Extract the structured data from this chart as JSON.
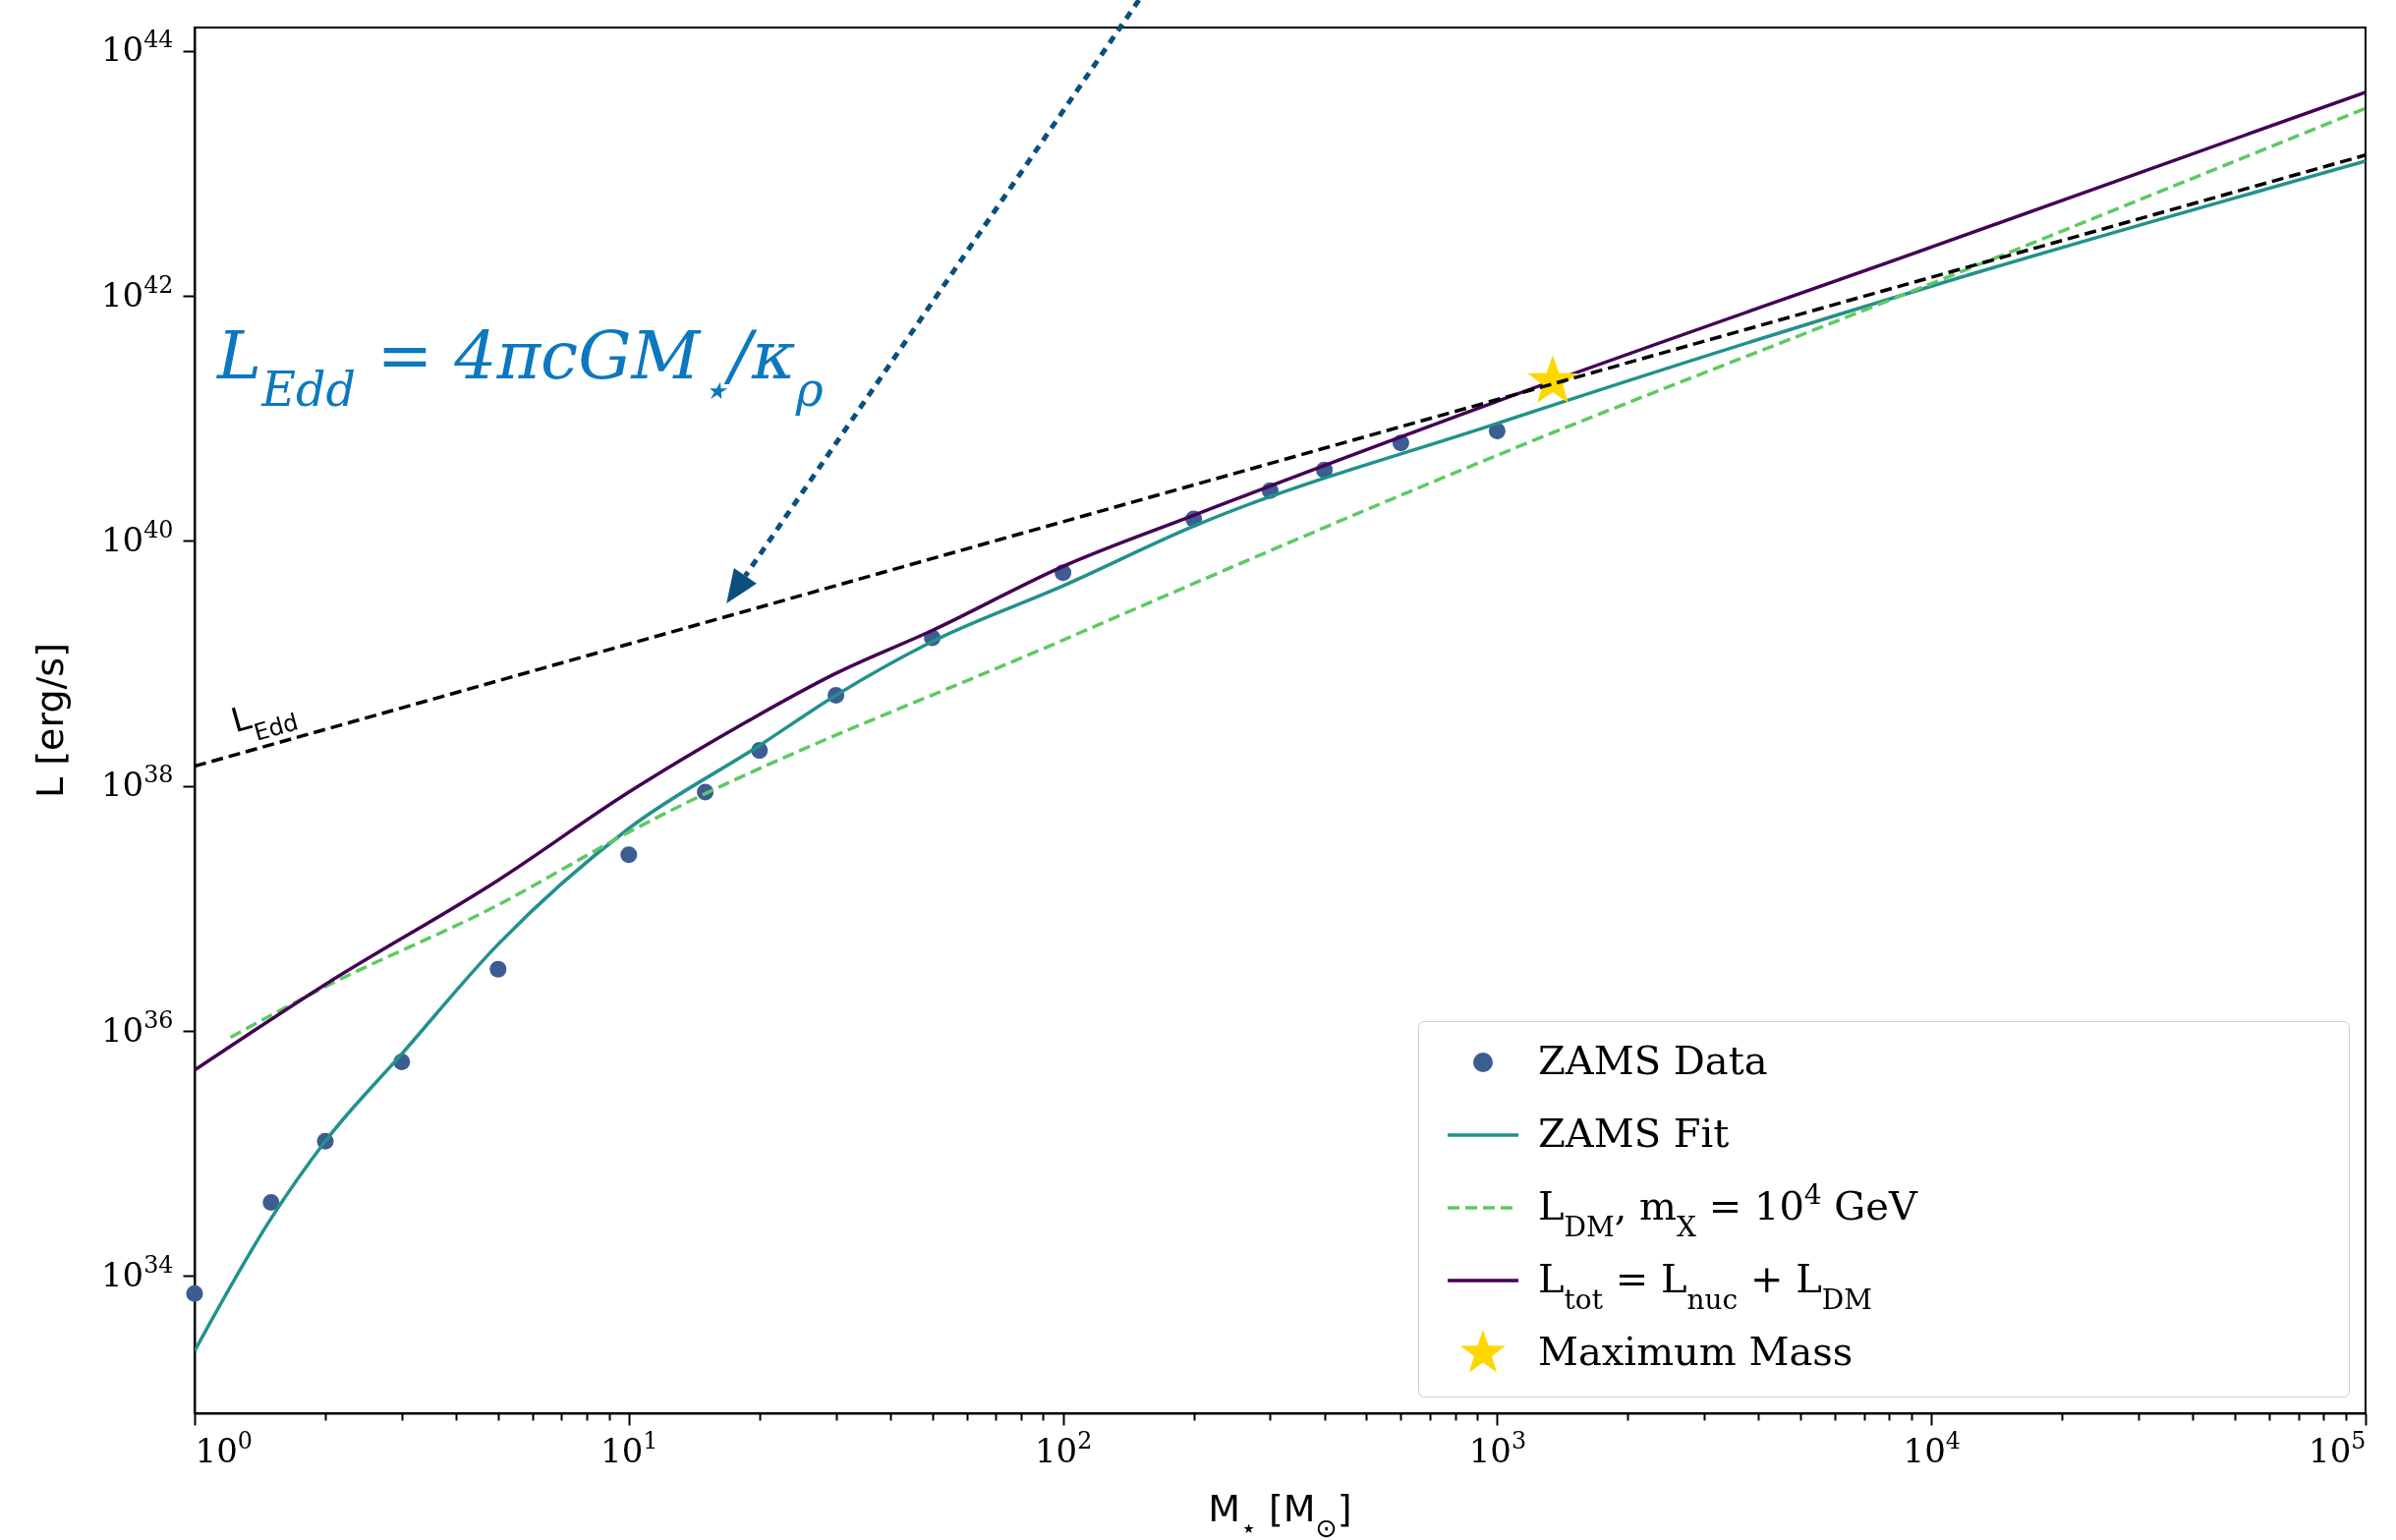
{
  "chart_data": {
    "type": "line",
    "xlabel": "M$_{⋆}$ [M$_{⊙}$]",
    "ylabel": "L [erg/s]",
    "log": "xy",
    "xlim": [
      1,
      100000
    ],
    "ylim": [
      7.6e+32,
      1.55e+44
    ],
    "xticks": [
      {
        "value": 1,
        "label": "10$^{0}$"
      },
      {
        "value": 2,
        "label": null
      },
      {
        "value": 3,
        "label": null
      },
      {
        "value": 4,
        "label": null
      },
      {
        "value": 5,
        "label": null
      },
      {
        "value": 6,
        "label": null
      },
      {
        "value": 7,
        "label": null
      },
      {
        "value": 8,
        "label": null
      },
      {
        "value": 9,
        "label": null
      },
      {
        "value": 10,
        "label": "10$^{1}$"
      },
      {
        "value": 20,
        "label": null
      },
      {
        "value": 30,
        "label": null
      },
      {
        "value": 40,
        "label": null
      },
      {
        "value": 50,
        "label": null
      },
      {
        "value": 60,
        "label": null
      },
      {
        "value": 70,
        "label": null
      },
      {
        "value": 80,
        "label": null
      },
      {
        "value": 90,
        "label": null
      },
      {
        "value": 100,
        "label": "10$^{2}$"
      },
      {
        "value": 200,
        "label": null
      },
      {
        "value": 300,
        "label": null
      },
      {
        "value": 400,
        "label": null
      },
      {
        "value": 500,
        "label": null
      },
      {
        "value": 600,
        "label": null
      },
      {
        "value": 700,
        "label": null
      },
      {
        "value": 800,
        "label": null
      },
      {
        "value": 900,
        "label": null
      },
      {
        "value": 1000,
        "label": "10$^{3}$"
      },
      {
        "value": 2000,
        "label": null
      },
      {
        "value": 3000,
        "label": null
      },
      {
        "value": 4000,
        "label": null
      },
      {
        "value": 5000,
        "label": null
      },
      {
        "value": 6000,
        "label": null
      },
      {
        "value": 7000,
        "label": null
      },
      {
        "value": 8000,
        "label": null
      },
      {
        "value": 9000,
        "label": null
      },
      {
        "value": 10000,
        "label": "10$^{4}$"
      },
      {
        "value": 20000,
        "label": null
      },
      {
        "value": 30000,
        "label": null
      },
      {
        "value": 40000,
        "label": null
      },
      {
        "value": 50000,
        "label": null
      },
      {
        "value": 60000,
        "label": null
      },
      {
        "value": 70000,
        "label": null
      },
      {
        "value": 80000,
        "label": null
      },
      {
        "value": 90000,
        "label": null
      },
      {
        "value": 100000,
        "label": "10$^{5}$"
      }
    ],
    "yticks": [
      {
        "value": 1e+34,
        "label": "10$^{34}$"
      },
      {
        "value": 1e+36,
        "label": "10$^{36}$"
      },
      {
        "value": 1e+38,
        "label": "10$^{38}$"
      },
      {
        "value": 1e+40,
        "label": "10$^{40}$"
      },
      {
        "value": 1e+42,
        "label": "10$^{42}$"
      },
      {
        "value": 1e+44,
        "label": "10$^{44}$"
      }
    ],
    "legend": "bottom right",
    "series": [
      {
        "name": "ZAMS Data",
        "type": "scatter",
        "marker": "circle",
        "color": "#3b5d91",
        "x": [
          1,
          1.5,
          2,
          3,
          5,
          10,
          15,
          20,
          30,
          50,
          100,
          200,
          300,
          400,
          600,
          1000
        ],
        "values": [
          7.2e+33,
          4e+34,
          1.26e+35,
          5.6e+35,
          3.2e+36,
          2.75e+37,
          8.9e+37,
          1.95e+38,
          5.5e+38,
          1.62e+39,
          5.5e+39,
          1.51e+40,
          2.57e+40,
          3.8e+40,
          6.3e+40,
          7.9e+40
        ]
      },
      {
        "name": "ZAMS Fit",
        "line_style": "solid",
        "color": "#21918c",
        "x": [
          1,
          1.5,
          2,
          3,
          5,
          10,
          20,
          30,
          50,
          100,
          200,
          1000,
          10000,
          100000
        ],
        "values": [
          2.45e+33,
          2.95e+34,
          1.26e+35,
          6.5e+35,
          5.1e+36,
          4.5e+37,
          2.14e+38,
          5.5e+38,
          1.51e+39,
          4.3e+39,
          1.32e+40,
          9.1e+40,
          1.2e+42,
          1.26e+43
        ]
      },
      {
        "name": "L$_{DM}$, m$_{X}$ = 10$^{4}$ GeV",
        "line_style": "dashed",
        "color": "#5ec962",
        "x": [
          1.21,
          2,
          5,
          10,
          100,
          1000,
          10000,
          100000
        ],
        "values": [
          8.9e+35,
          2.3e+36,
          1.07e+37,
          4.2e+37,
          1.55e+39,
          5e+40,
          1.26e+42,
          3.4e+43
        ]
      },
      {
        "name": "L$_{tot}$ = L$_{nuc}$ + L$_{DM}$",
        "line_style": "solid",
        "color": "#440154",
        "x": [
          1,
          2,
          5,
          10,
          18,
          30,
          50,
          100,
          200,
          1000,
          10000,
          100000
        ],
        "values": [
          4.8e+35,
          2.4e+36,
          1.7e+37,
          8.9e+37,
          3.1e+38,
          8.3e+38,
          1.86e+39,
          6.2e+39,
          1.62e+40,
          1.38e+41,
          2.5e+42,
          4.6e+43
        ]
      },
      {
        "name": "Maximum Mass",
        "type": "scatter",
        "marker": "star",
        "color": "#ffd700",
        "x": [
          1343
        ],
        "values": [
          2e+41
        ]
      },
      {
        "line_style": "dashed",
        "color": "#000000",
        "x": [
          1,
          100000
        ],
        "values": [
          1.45e+38,
          1.41e+43
        ]
      }
    ],
    "annotations": [
      "L$_{Edd}$ = 4πcGM$_{⋆}$/κ$_{ρ}$",
      {
        "text": "L$_{Edd}$",
        "x": 1.5,
        "y": 2.2e+38
      }
    ]
  }
}
